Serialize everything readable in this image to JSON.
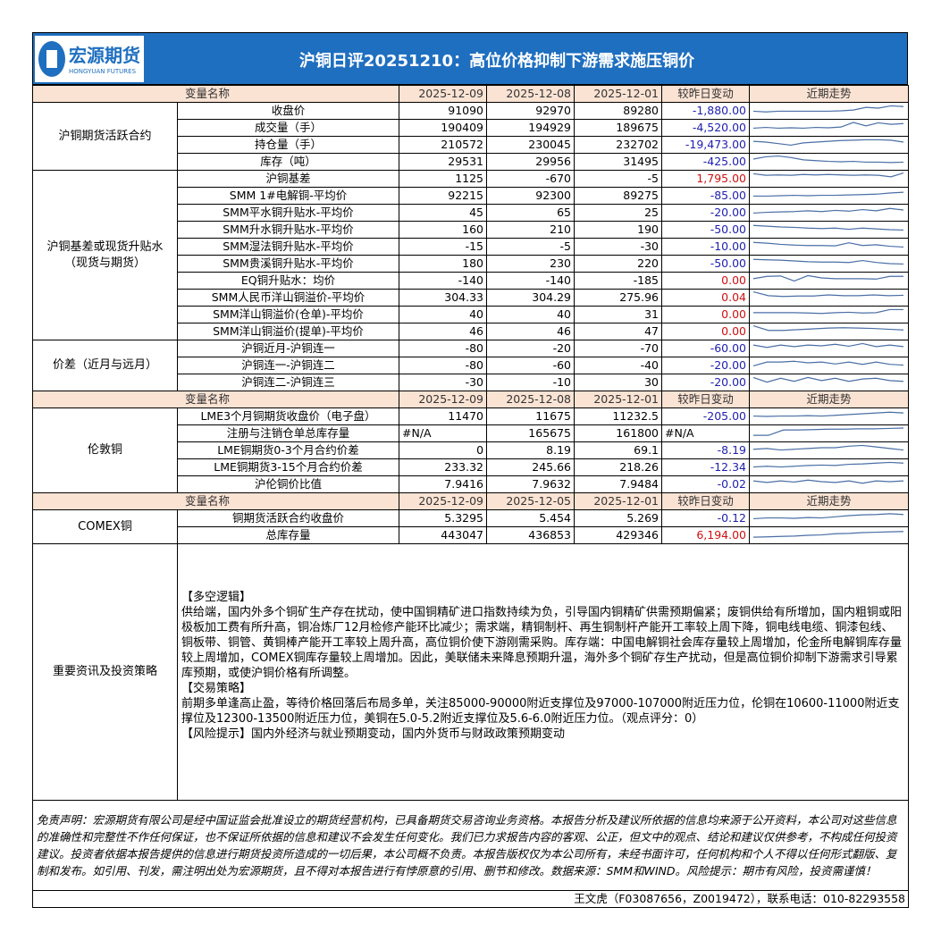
{
  "header": {
    "logo_cn": "宏源期货",
    "logo_en": "HONGYUAN FUTURES",
    "title": "沪铜日评20251210：高位价格抑制下游需求施压铜价"
  },
  "colors": {
    "title_bg": "#1f6fc0",
    "header_bg": "#fbe3d4",
    "negative": "#1f1fb0",
    "positive": "#d01010",
    "sparkline": "#4a6fa5"
  },
  "sections": [
    {
      "columns": [
        "变量名称",
        "2025-12-09",
        "2025-12-08",
        "2025-12-01",
        "较昨日变动",
        "近期走势"
      ],
      "groups": [
        {
          "name": "沪铜期货活跃合约",
          "rows": [
            {
              "label": "收盘价",
              "v": [
                "91090",
                "92970",
                "89280"
              ],
              "chg": "-1,880.00",
              "sign": "neg",
              "trend": [
                2,
                1.8,
                2,
                2,
                2,
                2,
                2,
                2.1,
                2.3,
                3,
                2.8,
                3.4,
                3.2
              ]
            },
            {
              "label": "成交量（手）",
              "v": [
                "190409",
                "194929",
                "189675"
              ],
              "chg": "-4,520.00",
              "sign": "neg",
              "trend": [
                2,
                2.2,
                2,
                2.1,
                2,
                2.2,
                2.1,
                2.3,
                3.5,
                2.6,
                3.4,
                3,
                3.2
              ]
            },
            {
              "label": "持仓量（手）",
              "v": [
                "210572",
                "230045",
                "232702"
              ],
              "chg": "-19,473.00",
              "sign": "neg",
              "trend": [
                3,
                2.8,
                2.4,
                2,
                2.6,
                2.8,
                3,
                3.2,
                3.3,
                3.4,
                3.4,
                3.3,
                2.8
              ]
            },
            {
              "label": "库存（吨）",
              "v": [
                "29531",
                "29956",
                "31495"
              ],
              "chg": "-425.00",
              "sign": "neg",
              "trend": [
                2.8,
                3.4,
                3.6,
                3.2,
                2.6,
                2.4,
                2.2,
                2.1,
                2.2,
                2,
                2,
                1.9,
                2
              ]
            }
          ]
        },
        {
          "name": "沪铜基差或现货升贴水\n（现货与期货）",
          "rows": [
            {
              "label": "沪铜基差",
              "v": [
                "1125",
                "-670",
                "-5"
              ],
              "chg": "1,795.00",
              "sign": "pos",
              "trend": [
                3.4,
                3,
                3.1,
                3,
                3.2,
                3.1,
                3.2,
                3.1,
                3,
                3.1,
                3,
                2.6,
                3.6
              ]
            },
            {
              "label": "SMM 1#电解铜-平均价",
              "v": [
                "92215",
                "92300",
                "89275"
              ],
              "chg": "-85.00",
              "sign": "neg",
              "trend": [
                2,
                2,
                2.1,
                2.2,
                2.1,
                2.2,
                2.2,
                2.3,
                2.4,
                2.5,
                2.8,
                3
              ]
            },
            {
              "label": "SMM平水铜升贴水-平均价",
              "v": [
                "45",
                "65",
                "25"
              ],
              "chg": "-20.00",
              "sign": "neg",
              "trend": [
                2,
                2.2,
                2.3,
                2.4,
                2.6,
                2.4,
                2.7,
                2.5,
                2.9,
                2.6,
                3.2,
                2.8
              ]
            },
            {
              "label": "SMM升水铜升贴水-平均价",
              "v": [
                "160",
                "210",
                "190"
              ],
              "chg": "-50.00",
              "sign": "neg",
              "trend": [
                3.2,
                3,
                2.8,
                2.7,
                2.5,
                2.4,
                2.5,
                2.2,
                2.5,
                2.3,
                2.1,
                2
              ]
            },
            {
              "label": "SMM湿法铜升贴水-平均价",
              "v": [
                "-15",
                "-5",
                "-30"
              ],
              "chg": "-10.00",
              "sign": "neg",
              "trend": [
                3.2,
                3,
                2.7,
                2.5,
                2.4,
                2.4,
                2.3,
                3.1,
                2.4,
                2.6,
                2.2,
                2
              ]
            },
            {
              "label": "SMM贵溪铜升贴水-平均价",
              "v": [
                "180",
                "230",
                "220"
              ],
              "chg": "-50.00",
              "sign": "neg",
              "trend": [
                3.2,
                3.1,
                3,
                2.8,
                2.6,
                2.5,
                2.5,
                2.4,
                2.9,
                2.4,
                2.1,
                2
              ]
            },
            {
              "label": "EQ铜升贴水：均价",
              "v": [
                "-140",
                "-140",
                "-185"
              ],
              "chg": "0.00",
              "sign": "pos",
              "trend": [
                2.6,
                3.2,
                3.3,
                2,
                3.4,
                2.8,
                2.6,
                2.6,
                2.6,
                2.5,
                3.2,
                3.2
              ]
            },
            {
              "label": "SMM人民币洋山铜溢价-平均价",
              "v": [
                "304.33",
                "304.29",
                "275.96"
              ],
              "chg": "0.04",
              "sign": "pos",
              "trend": [
                3.6,
                2.6,
                2.4,
                2.5,
                2.5,
                2.8,
                2.6,
                2.6,
                2.8,
                2.6,
                2.7
              ]
            },
            {
              "label": "SMM洋山铜溢价(仓单)-平均价",
              "v": [
                "40",
                "40",
                "31"
              ],
              "chg": "0.00",
              "sign": "pos",
              "trend": [
                2.6,
                2.6,
                2.6,
                2.6,
                2.5,
                2.4,
                2.6,
                2.7,
                2.5,
                2.6,
                3.4,
                3.4
              ]
            },
            {
              "label": "SMM洋山铜溢价(提单)-平均价",
              "v": [
                "46",
                "46",
                "47"
              ],
              "chg": "0.00",
              "sign": "pos",
              "trend": [
                3.6,
                2.4,
                2.4,
                2.6,
                2.8,
                3,
                3.1,
                3,
                2.9,
                2.7,
                2.5
              ]
            }
          ]
        },
        {
          "name": "价差（近月与远月）",
          "rows": [
            {
              "label": "沪铜近月-沪铜连一",
              "v": [
                "-80",
                "-20",
                "-70"
              ],
              "chg": "-60.00",
              "sign": "neg",
              "trend": [
                3,
                2.4,
                3,
                2.6,
                3,
                2.8,
                3.2,
                2.7,
                3.4,
                2.6,
                3,
                2.6
              ]
            },
            {
              "label": "沪铜连一-沪铜连二",
              "v": [
                "-80",
                "-60",
                "-40"
              ],
              "chg": "-20.00",
              "sign": "neg",
              "trend": [
                2,
                3,
                3,
                3.2,
                2.8,
                3,
                2.5,
                3,
                2.4,
                3,
                2.4,
                2.2
              ]
            },
            {
              "label": "沪铜连二-沪铜连三",
              "v": [
                "-30",
                "-10",
                "30"
              ],
              "chg": "-20.00",
              "sign": "neg",
              "trend": [
                3.4,
                2.2,
                3.2,
                2.4,
                3.4,
                2.6,
                3.2,
                2.4,
                3,
                3.2,
                2.6,
                2.4
              ]
            }
          ]
        }
      ]
    },
    {
      "columns": [
        "变量名称",
        "2025-12-09",
        "2025-12-08",
        "2025-12-01",
        "较昨日变动",
        "近期走势"
      ],
      "groups": [
        {
          "name": "伦敦铜",
          "rows": [
            {
              "label": "LME3个月铜期货收盘价（电子盘）",
              "v": [
                "11470",
                "11675",
                "11232.5"
              ],
              "chg": "-205.00",
              "sign": "neg",
              "trend": [
                2.2,
                2.1,
                2.2,
                2.2,
                2.3,
                2.2,
                2.4,
                2.6,
                2.8,
                3,
                3.2,
                3
              ]
            },
            {
              "label": "注册与注销仓单总库存量",
              "v": [
                "#N/A",
                "165675",
                "161800"
              ],
              "chg": "#N/A",
              "sign": "none",
              "trend": [
                1.6,
                1.6,
                3,
                3,
                3.1,
                3.2,
                3.2,
                3.3,
                3.3,
                3.4,
                3.5
              ]
            },
            {
              "label": "LME铜期货0-3个月合约价差",
              "v": [
                "0",
                "8.19",
                "69.1"
              ],
              "chg": "-8.19",
              "sign": "neg",
              "trend": [
                2.4,
                2.6,
                2.2,
                2.4,
                2.6,
                2.8,
                2.8,
                3.2,
                3.4,
                3,
                2.6,
                2.2
              ]
            },
            {
              "label": "LME铜期货3-15个月合约价差",
              "v": [
                "233.32",
                "245.66",
                "218.26"
              ],
              "chg": "-12.34",
              "sign": "neg",
              "trend": [
                2.2,
                2.4,
                2.2,
                2.4,
                2.6,
                2.7,
                2.6,
                2.9,
                3,
                3.2,
                3.4,
                3.2
              ]
            },
            {
              "label": "沪伦铜价比值",
              "v": [
                "7.9416",
                "7.9632",
                "7.9484"
              ],
              "chg": "-0.02",
              "sign": "neg",
              "trend": [
                3,
                2.6,
                3,
                2.7,
                3.2,
                2.8,
                2.6,
                3,
                2.4,
                3,
                2.8,
                3
              ]
            }
          ]
        }
      ]
    },
    {
      "columns": [
        "变量名称",
        "2025-12-09",
        "2025-12-05",
        "2025-12-01",
        "较昨日变动",
        "近期走势"
      ],
      "groups": [
        {
          "name": "COMEX铜",
          "rows": [
            {
              "label": "铜期货活跃合约收盘价",
              "v": [
                "5.3295",
                "5.454",
                "5.269"
              ],
              "chg": "-0.12",
              "sign": "neg",
              "trend": [
                2,
                2.2,
                2.2,
                2.1,
                2.3,
                2.2,
                2.5,
                2.8,
                3,
                3.1,
                3.3,
                3.1
              ]
            },
            {
              "label": "总库存量",
              "v": [
                "443047",
                "436853",
                "429346"
              ],
              "chg": "6,194.00",
              "sign": "pos",
              "trend": [
                1.6,
                1.7,
                1.8,
                1.9,
                2.1,
                2.2,
                2.5,
                2.6,
                2.8,
                2.9,
                3,
                3.1
              ]
            }
          ]
        }
      ]
    }
  ],
  "strategy": {
    "label": "重要资讯及投资策略",
    "paragraphs": [
      "【多空逻辑】",
      "供给端，国内外多个铜矿生产存在扰动，使中国铜精矿进口指数持续为负，引导国内铜精矿供需预期偏紧；废铜供给有所增加，国内粗铜或阳极板加工费有所升高，铜冶炼厂12月检修产能环比减少；需求端，精铜制杆、再生铜制杆产能开工率较上周下降，铜电线电缆、铜漆包线、铜板带、铜管、黄铜棒产能开工率较上周升高，高位铜价使下游刚需采购。库存端：中国电解铜社会库存量较上周增加，伦金所电解铜库存量较上周增加，COMEX铜库存量较上周增加。因此，美联储未来降息预期升温，海外多个铜矿存生产扰动，但是高位铜价抑制下游需求引导累库预期，或使沪铜价格有所调整。",
      "【交易策略】",
      "前期多单逢高止盈，等待价格回落后布局多单，关注85000-90000附近支撑位及97000-107000附近压力位，伦铜在10600-11000附近支撑位及12300-13500附近压力位，美铜在5.0-5.2附近支撑位及5.6-6.0附近压力位。（观点评分：0）",
      "【风险提示】国内外经济与就业预期变动，国内外货币与财政政策预期变动"
    ]
  },
  "disclaimer": "免责声明：宏源期货有限公司是经中国证监会批准设立的期货经营机构，已具备期货交易咨询业务资格。本报告分析及建议所依据的信息均来源于公开资料，本公司对这些信息的准确性和完整性不作任何保证，也不保证所依据的信息和建议不会发生任何变化。我们已力求报告内容的客观、公正，但文中的观点、结论和建议仅供参考，不构成任何投资建议。投资者依据本报告提供的信息进行期货投资所造成的一切后果，本公司概不负责。本报告版权仅为本公司所有，未经书面许可，任何机构和个人不得以任何形式翻版、复制和发布。如引用、刊发，需注明出处为宏源期货，且不得对本报告进行有悖原意的引用、删节和修改。数据来源：SMM和WIND。风险提示：期市有风险，投资需谨慎！",
  "contact": "王文虎（F03087656，Z0019472），联系电话：010-82293558"
}
